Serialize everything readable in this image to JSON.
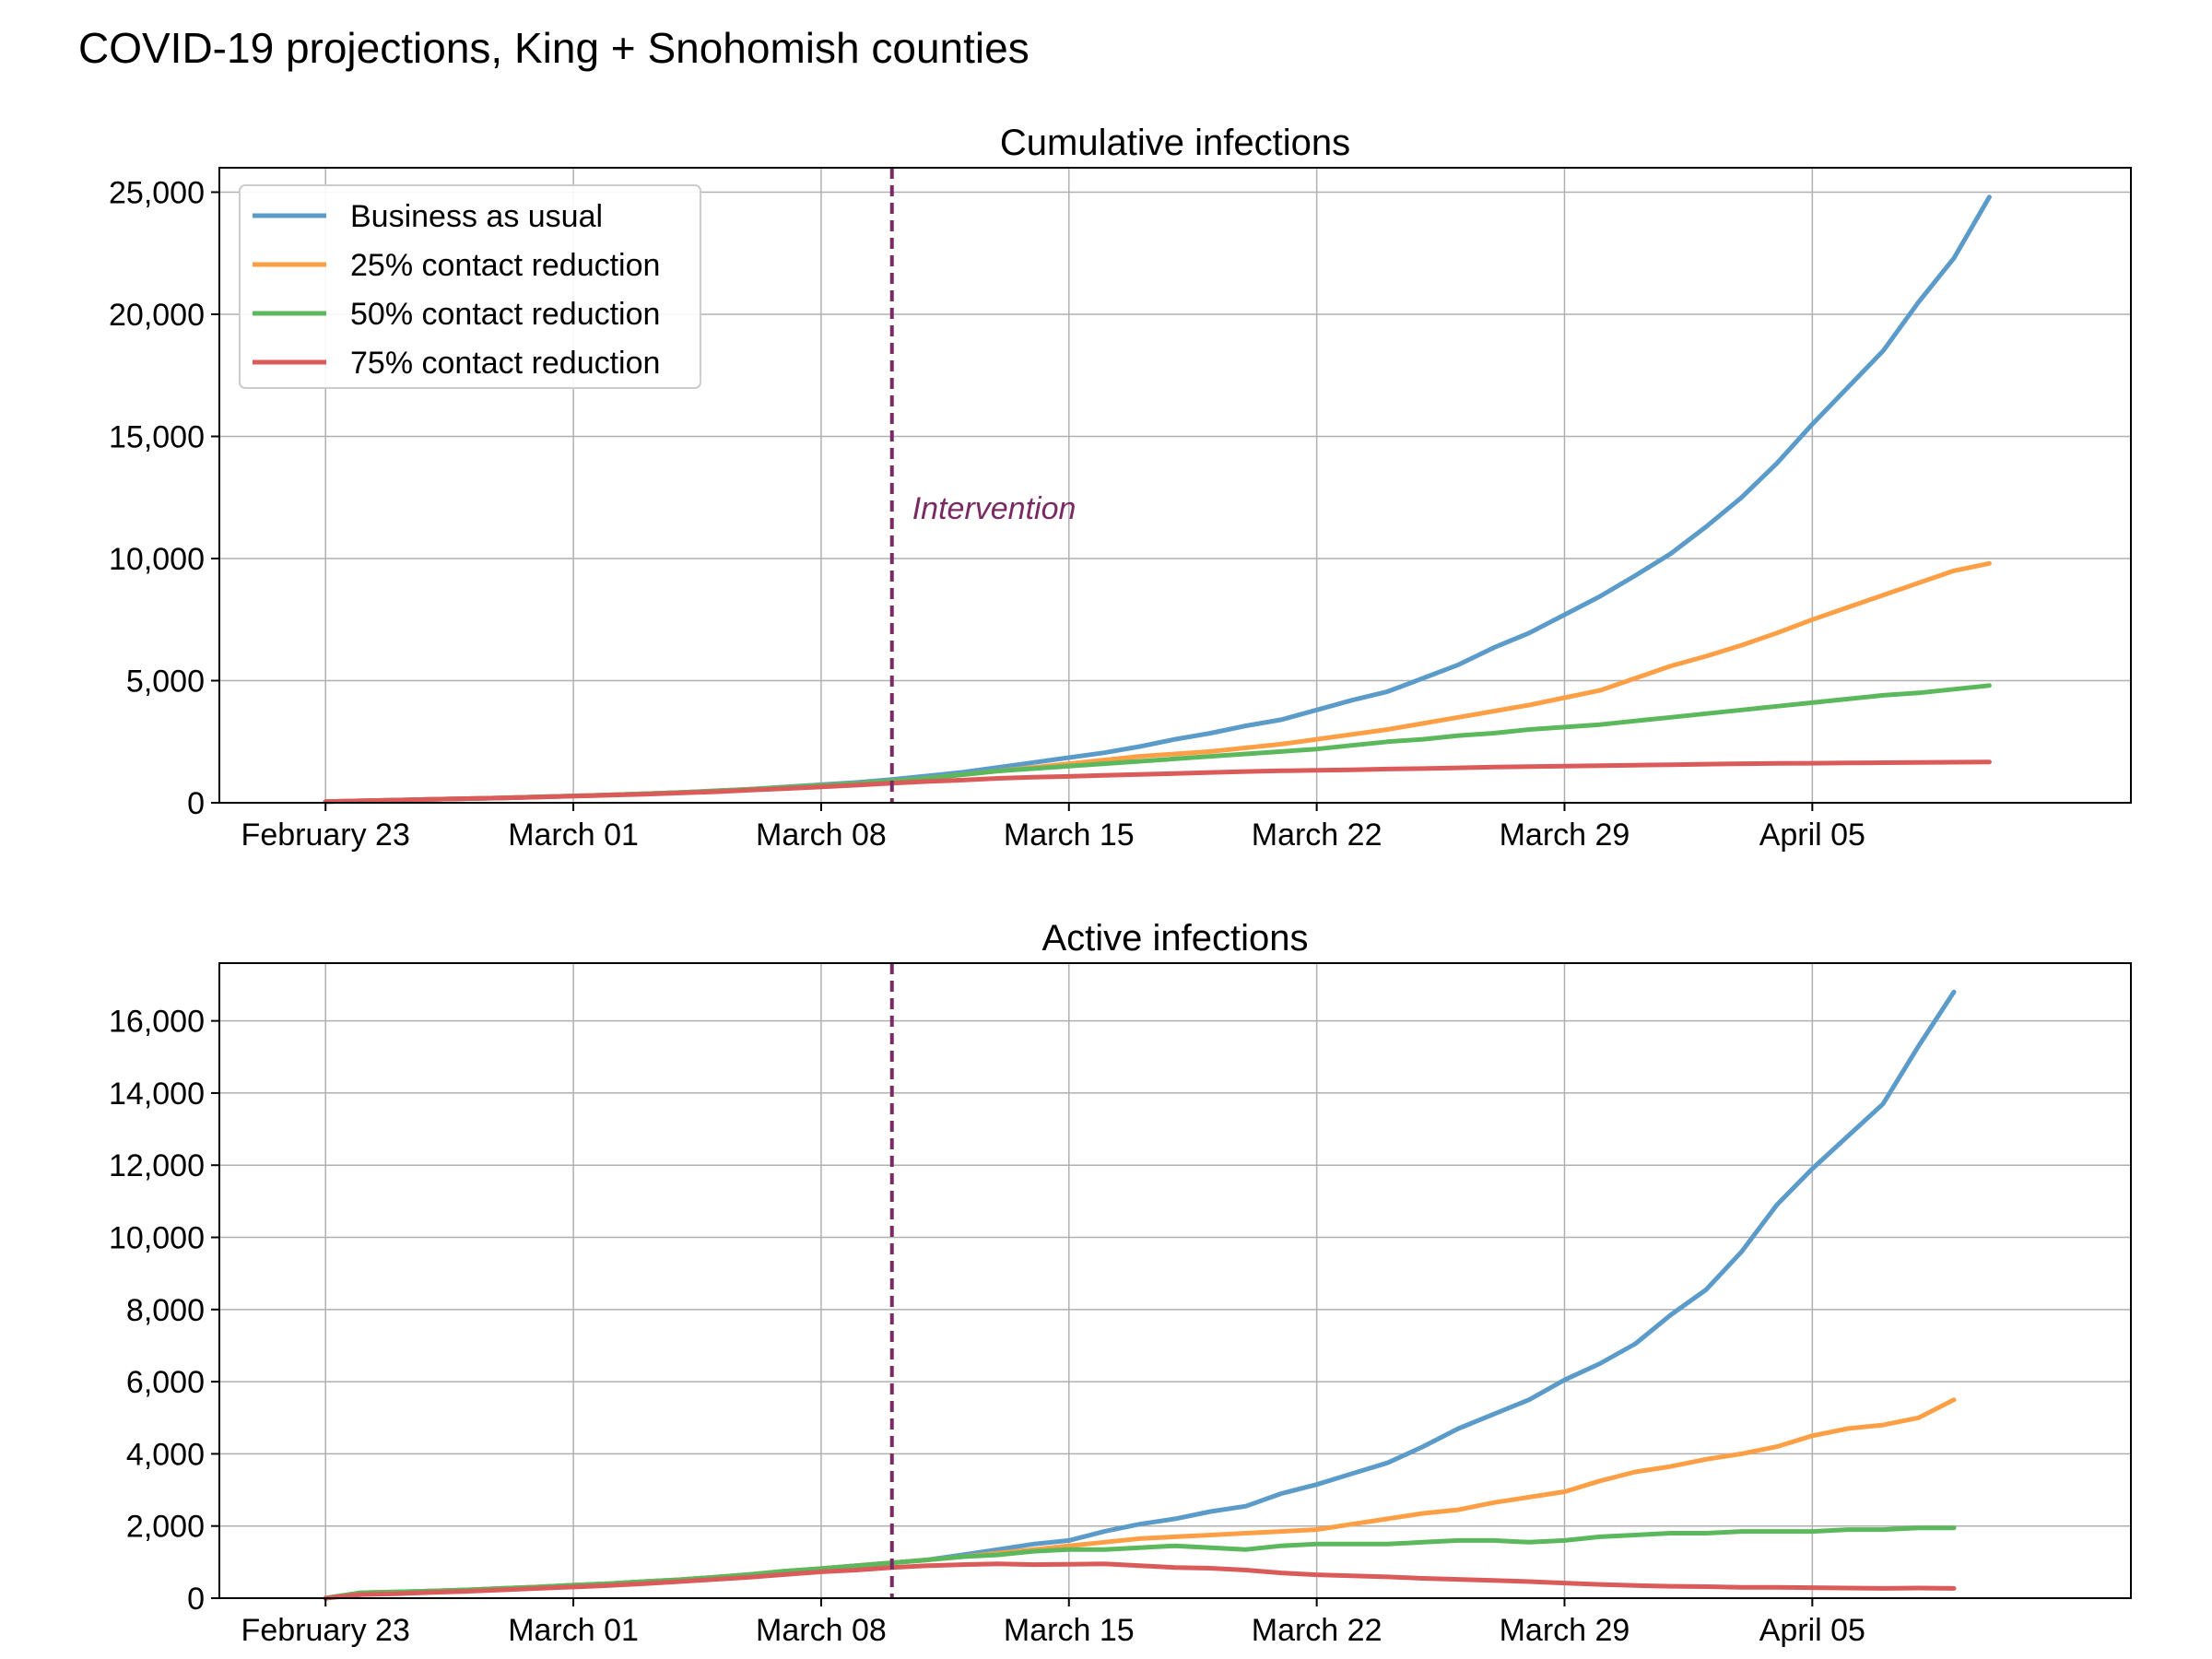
{
  "figure_title": "COVID-19 projections, King + Snohomish counties",
  "colors": {
    "Business as usual": "#5b9bc9",
    "25% contact reduction": "#ff9f45",
    "50% contact reduction": "#5cb85c",
    "75% contact reduction": "#db5a5a",
    "intervention": "#7a2a62"
  },
  "chart_data": [
    {
      "type": "line",
      "title": "Cumulative infections",
      "x_axis_type": "date",
      "x_start": "2020-02-23",
      "x_end": "2020-04-09",
      "xlim": [
        "2020-02-20",
        "2020-04-14"
      ],
      "xticks": [
        "2020-02-23",
        "2020-03-01",
        "2020-03-08",
        "2020-03-15",
        "2020-03-22",
        "2020-03-29",
        "2020-04-05"
      ],
      "xtick_labels": [
        "February 23",
        "March 01",
        "March 08",
        "March 15",
        "March 22",
        "March 29",
        "April 05"
      ],
      "ylim": [
        0,
        26000
      ],
      "yticks": [
        0,
        5000,
        10000,
        15000,
        20000,
        25000
      ],
      "ytick_labels": [
        "0",
        "5,000",
        "10,000",
        "15,000",
        "20,000",
        "25,000"
      ],
      "grid": true,
      "legend": "upper left",
      "annotation": {
        "text": "Intervention",
        "x": "2020-03-10",
        "y": 12000
      },
      "vline": "2020-03-10",
      "series": [
        {
          "name": "Business as usual",
          "values": [
            50,
            80,
            110,
            140,
            170,
            200,
            240,
            280,
            320,
            370,
            420,
            490,
            560,
            650,
            740,
            830,
            950,
            1100,
            1250,
            1450,
            1650,
            1850,
            2050,
            2300,
            2600,
            2850,
            3150,
            3400,
            3800,
            4200,
            4550,
            5100,
            5650,
            6350,
            6950,
            7700,
            8450,
            9300,
            10200,
            11300,
            12500,
            13900,
            15500,
            17000,
            18500,
            20500,
            22300,
            24800
          ]
        },
        {
          "name": "25% contact reduction",
          "values": [
            50,
            80,
            110,
            140,
            170,
            200,
            240,
            280,
            320,
            370,
            420,
            480,
            550,
            630,
            710,
            790,
            890,
            1000,
            1150,
            1300,
            1450,
            1600,
            1750,
            1900,
            2000,
            2100,
            2250,
            2400,
            2600,
            2800,
            3000,
            3250,
            3500,
            3750,
            4000,
            4300,
            4600,
            5100,
            5600,
            6000,
            6450,
            6950,
            7500,
            8000,
            8500,
            9000,
            9500,
            9800
          ]
        },
        {
          "name": "50% contact reduction",
          "values": [
            50,
            80,
            110,
            140,
            170,
            200,
            240,
            280,
            320,
            370,
            420,
            480,
            550,
            630,
            710,
            790,
            890,
            1000,
            1150,
            1300,
            1400,
            1500,
            1600,
            1700,
            1800,
            1900,
            2000,
            2100,
            2200,
            2350,
            2500,
            2600,
            2750,
            2850,
            3000,
            3100,
            3200,
            3350,
            3500,
            3650,
            3800,
            3950,
            4100,
            4250,
            4400,
            4500,
            4650,
            4800
          ]
        },
        {
          "name": "75% contact reduction",
          "values": [
            50,
            80,
            110,
            140,
            170,
            200,
            230,
            270,
            310,
            350,
            400,
            450,
            520,
            580,
            650,
            720,
            800,
            870,
            930,
            1000,
            1050,
            1080,
            1120,
            1160,
            1200,
            1240,
            1280,
            1310,
            1330,
            1350,
            1380,
            1400,
            1430,
            1460,
            1480,
            1500,
            1520,
            1540,
            1560,
            1580,
            1600,
            1610,
            1620,
            1630,
            1640,
            1650,
            1660,
            1670
          ]
        }
      ]
    },
    {
      "type": "line",
      "title": "Active infections",
      "x_axis_type": "date",
      "x_start": "2020-02-23",
      "x_end": "2020-04-09",
      "xlim": [
        "2020-02-20",
        "2020-04-14"
      ],
      "xticks": [
        "2020-02-23",
        "2020-03-01",
        "2020-03-08",
        "2020-03-15",
        "2020-03-22",
        "2020-03-29",
        "2020-04-05"
      ],
      "xtick_labels": [
        "February 23",
        "March 01",
        "March 08",
        "March 15",
        "March 22",
        "March 29",
        "April 05"
      ],
      "ylim": [
        0,
        17600
      ],
      "yticks": [
        0,
        2000,
        4000,
        6000,
        8000,
        10000,
        12000,
        14000,
        16000
      ],
      "ytick_labels": [
        "0",
        "2,000",
        "4,000",
        "6,000",
        "8,000",
        "10,000",
        "12,000",
        "14,000",
        "16,000"
      ],
      "grid": true,
      "vline": "2020-03-10",
      "series": [
        {
          "name": "Business as usual",
          "values": [
            0,
            150,
            170,
            200,
            230,
            270,
            310,
            360,
            400,
            460,
            510,
            580,
            660,
            750,
            820,
            900,
            980,
            1060,
            1200,
            1350,
            1500,
            1600,
            1850,
            2050,
            2200,
            2400,
            2550,
            2900,
            3150,
            3450,
            3750,
            4200,
            4700,
            5100,
            5500,
            6050,
            6500,
            7050,
            7850,
            8550,
            9600,
            10900,
            11900,
            12800,
            13700,
            15300,
            16800
          ]
        },
        {
          "name": "25% contact reduction",
          "values": [
            0,
            150,
            170,
            200,
            230,
            270,
            310,
            360,
            400,
            460,
            510,
            580,
            660,
            750,
            820,
            900,
            980,
            1060,
            1150,
            1250,
            1350,
            1450,
            1550,
            1650,
            1700,
            1750,
            1800,
            1850,
            1900,
            2050,
            2200,
            2350,
            2450,
            2650,
            2800,
            2950,
            3250,
            3500,
            3650,
            3850,
            4000,
            4200,
            4500,
            4700,
            4800,
            5000,
            5500
          ]
        },
        {
          "name": "50% contact reduction",
          "values": [
            0,
            150,
            170,
            200,
            230,
            270,
            310,
            360,
            400,
            460,
            510,
            580,
            660,
            750,
            820,
            900,
            980,
            1060,
            1150,
            1200,
            1300,
            1350,
            1350,
            1400,
            1450,
            1400,
            1350,
            1450,
            1500,
            1500,
            1500,
            1550,
            1600,
            1600,
            1550,
            1600,
            1700,
            1750,
            1800,
            1800,
            1850,
            1850,
            1850,
            1900,
            1900,
            1950,
            1950
          ]
        },
        {
          "name": "75% contact reduction",
          "values": [
            0,
            100,
            120,
            160,
            190,
            230,
            270,
            310,
            350,
            400,
            460,
            520,
            580,
            660,
            730,
            780,
            850,
            900,
            930,
            950,
            930,
            940,
            950,
            900,
            850,
            830,
            780,
            700,
            650,
            620,
            590,
            550,
            520,
            490,
            460,
            420,
            380,
            350,
            330,
            320,
            300,
            300,
            290,
            280,
            270,
            280,
            270
          ]
        }
      ]
    }
  ]
}
